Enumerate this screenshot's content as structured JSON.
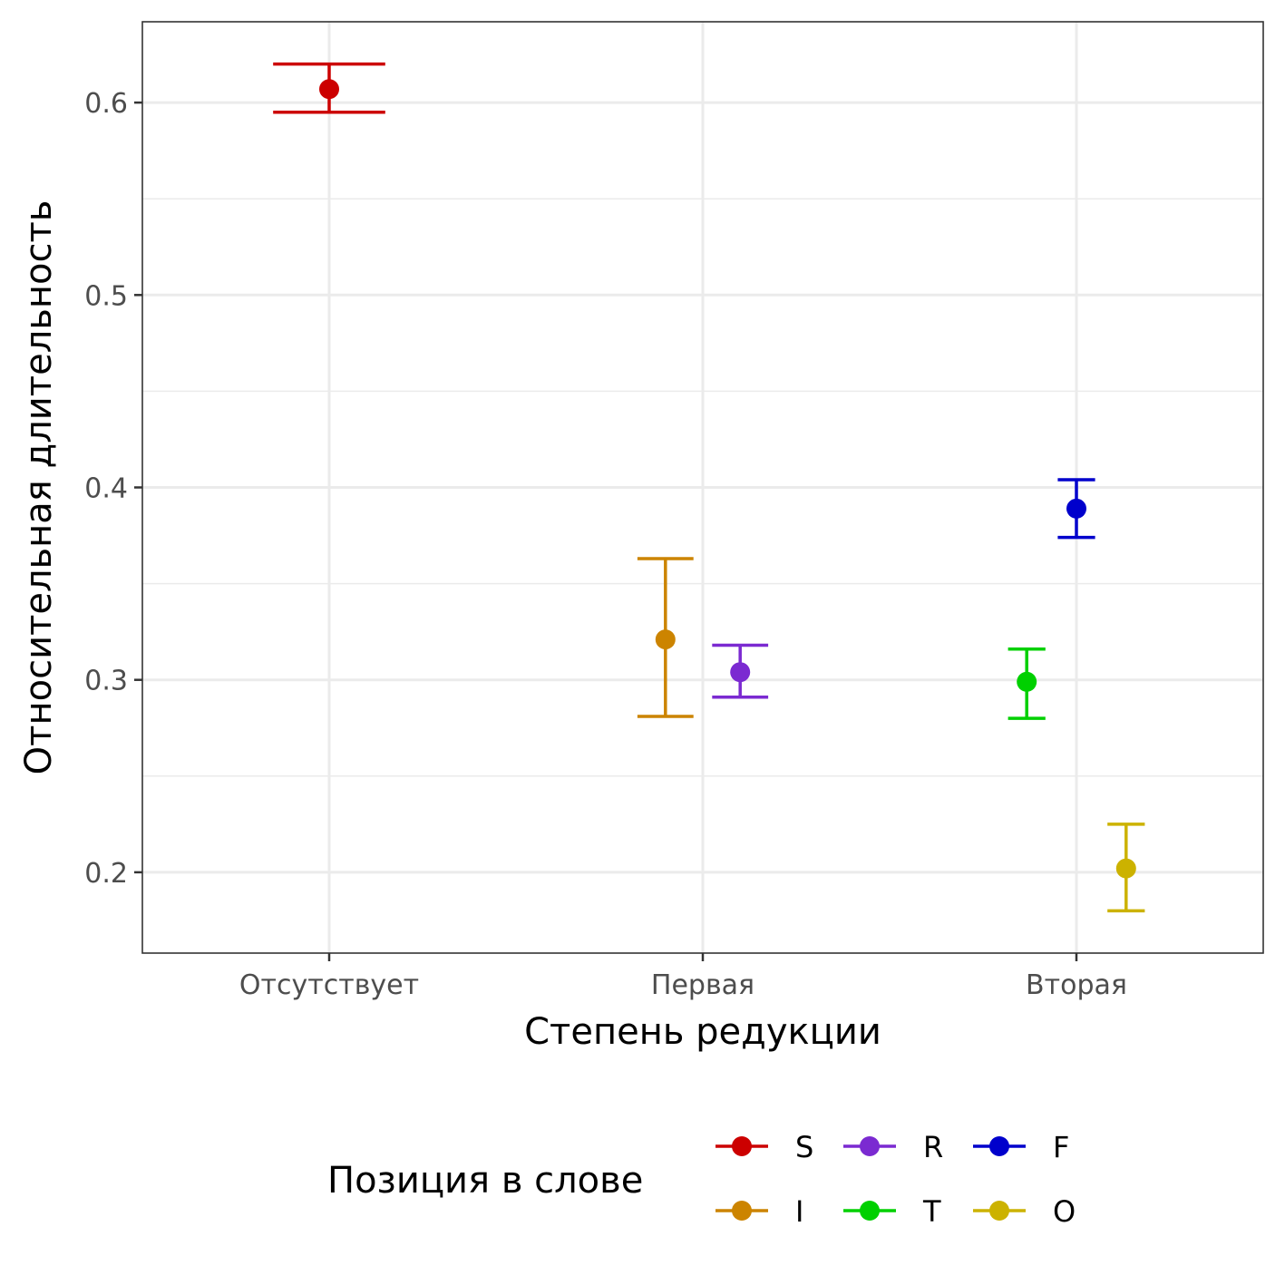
{
  "chart_data": {
    "type": "scatter",
    "categories": [
      "Отсутствует",
      "Первая",
      "Вторая"
    ],
    "xlabel": "Степень редукции",
    "ylabel": "Относительная длительность",
    "ylim": [
      0.158,
      0.642
    ],
    "y_ticks": [
      0.2,
      0.3,
      0.4,
      0.5,
      0.6
    ],
    "y_tick_labels": [
      "0.2",
      "0.3",
      "0.4",
      "0.5",
      "0.6"
    ],
    "grid": true,
    "legend": {
      "title": "Позиция в слове",
      "placement": "bottom",
      "entries": [
        {
          "name": "S",
          "color": "#cc0000"
        },
        {
          "name": "I",
          "color": "#cc8400"
        },
        {
          "name": "R",
          "color": "#7b2ad1"
        },
        {
          "name": "T",
          "color": "#00d000"
        },
        {
          "name": "F",
          "color": "#0000cc"
        },
        {
          "name": "O",
          "color": "#ccb200"
        }
      ]
    },
    "series": [
      {
        "name": "S",
        "color": "#cc0000",
        "category": "Отсутствует",
        "dodge": 0.0,
        "y": 0.607,
        "ymin": 0.595,
        "ymax": 0.62,
        "cap_width": 0.3
      },
      {
        "name": "I",
        "color": "#cc8400",
        "category": "Первая",
        "dodge": -0.1,
        "y": 0.321,
        "ymin": 0.281,
        "ymax": 0.363,
        "cap_width": 0.15
      },
      {
        "name": "R",
        "color": "#7b2ad1",
        "category": "Первая",
        "dodge": 0.1,
        "y": 0.304,
        "ymin": 0.291,
        "ymax": 0.318,
        "cap_width": 0.15
      },
      {
        "name": "T",
        "color": "#00d000",
        "category": "Вторая",
        "dodge": -0.133,
        "y": 0.299,
        "ymin": 0.28,
        "ymax": 0.316,
        "cap_width": 0.1
      },
      {
        "name": "F",
        "color": "#0000cc",
        "category": "Вторая",
        "dodge": 0.0,
        "y": 0.389,
        "ymin": 0.374,
        "ymax": 0.404,
        "cap_width": 0.1
      },
      {
        "name": "O",
        "color": "#ccb200",
        "category": "Вторая",
        "dodge": 0.133,
        "y": 0.202,
        "ymin": 0.18,
        "ymax": 0.225,
        "cap_width": 0.1
      }
    ]
  }
}
